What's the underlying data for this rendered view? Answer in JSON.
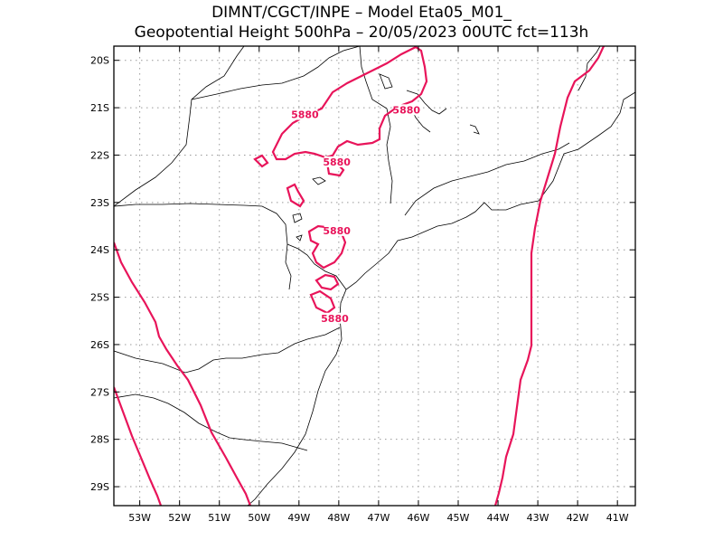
{
  "header": {
    "line1": "DIMNT/CGCT/INPE –  Model Eta05_M01_",
    "line2": "Geopotential Height 500hPa –  20/05/2023 00UTC fct=113h"
  },
  "map": {
    "lon_range": [
      -53.65,
      -40.55
    ],
    "lat_range": [
      -29.4,
      -19.7
    ],
    "grid": true,
    "contour_color": "#e8145a",
    "border_color": "#000000",
    "lon_ticks": [
      {
        "value": -53,
        "label": "53W"
      },
      {
        "value": -52,
        "label": "52W"
      },
      {
        "value": -51,
        "label": "51W"
      },
      {
        "value": -50,
        "label": "50W"
      },
      {
        "value": -49,
        "label": "49W"
      },
      {
        "value": -48,
        "label": "48W"
      },
      {
        "value": -47,
        "label": "47W"
      },
      {
        "value": -46,
        "label": "46W"
      },
      {
        "value": -45,
        "label": "45W"
      },
      {
        "value": -44,
        "label": "44W"
      },
      {
        "value": -43,
        "label": "43W"
      },
      {
        "value": -42,
        "label": "42W"
      },
      {
        "value": -41,
        "label": "41W"
      }
    ],
    "lat_ticks": [
      {
        "value": -20,
        "label": "20S"
      },
      {
        "value": -21,
        "label": "21S"
      },
      {
        "value": -22,
        "label": "22S"
      },
      {
        "value": -23,
        "label": "23S"
      },
      {
        "value": -24,
        "label": "24S"
      },
      {
        "value": -25,
        "label": "25S"
      },
      {
        "value": -26,
        "label": "26S"
      },
      {
        "value": -27,
        "label": "27S"
      },
      {
        "value": -28,
        "label": "28S"
      },
      {
        "value": -29,
        "label": "29S"
      }
    ],
    "contour_labels": [
      {
        "text": "5880",
        "lon": -48.85,
        "lat": -21.2
      },
      {
        "text": "5880",
        "lon": -46.3,
        "lat": -21.1
      },
      {
        "text": "5880",
        "lon": -48.05,
        "lat": -22.2
      },
      {
        "text": "5880",
        "lon": -48.05,
        "lat": -23.65
      },
      {
        "text": "5880",
        "lon": -48.1,
        "lat": -25.5
      }
    ]
  }
}
